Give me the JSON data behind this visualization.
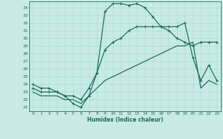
{
  "xlabel": "Humidex (Indice chaleur)",
  "xlim": [
    -0.5,
    23.5
  ],
  "ylim": [
    20.5,
    34.8
  ],
  "xticks": [
    0,
    1,
    2,
    3,
    4,
    5,
    6,
    7,
    8,
    9,
    10,
    11,
    12,
    13,
    14,
    15,
    16,
    17,
    18,
    19,
    20,
    21,
    22,
    23
  ],
  "yticks": [
    21,
    22,
    23,
    24,
    25,
    26,
    27,
    28,
    29,
    30,
    31,
    32,
    33,
    34
  ],
  "bg_color": "#c8eae6",
  "line_color": "#1a6b5a",
  "grid_color": "#b0ddd8",
  "line1_x": [
    0,
    1,
    2,
    3,
    4,
    5,
    6,
    7,
    8,
    9,
    10,
    11,
    12,
    13,
    14,
    15,
    16,
    17,
    18,
    19,
    20,
    21,
    22,
    23
  ],
  "line1_y": [
    24.0,
    23.5,
    23.5,
    23.0,
    22.5,
    21.5,
    21.0,
    22.5,
    25.5,
    33.5,
    34.5,
    34.5,
    34.3,
    34.5,
    34.0,
    32.8,
    31.5,
    31.0,
    30.0,
    29.5,
    29.0,
    29.5,
    29.5,
    29.5
  ],
  "line2_x": [
    0,
    1,
    2,
    3,
    4,
    5,
    6,
    7,
    8,
    9,
    10,
    11,
    12,
    13,
    14,
    15,
    16,
    17,
    18,
    19,
    20,
    21,
    22,
    23
  ],
  "line2_y": [
    23.5,
    23.0,
    23.0,
    23.0,
    22.5,
    22.5,
    22.0,
    23.5,
    25.5,
    28.5,
    29.5,
    30.0,
    31.0,
    31.5,
    31.5,
    31.5,
    31.5,
    31.5,
    31.5,
    32.0,
    27.5,
    24.5,
    26.5,
    24.5
  ],
  "line3_x": [
    0,
    1,
    2,
    3,
    4,
    5,
    6,
    7,
    8,
    9,
    10,
    11,
    12,
    13,
    14,
    15,
    16,
    17,
    18,
    19,
    20,
    21,
    22,
    23
  ],
  "line3_y": [
    23.0,
    22.5,
    22.5,
    22.5,
    22.0,
    22.0,
    21.5,
    22.5,
    23.5,
    24.5,
    25.0,
    25.5,
    26.0,
    26.5,
    27.0,
    27.5,
    28.0,
    28.5,
    29.0,
    29.0,
    29.5,
    23.5,
    24.5,
    24.0
  ]
}
